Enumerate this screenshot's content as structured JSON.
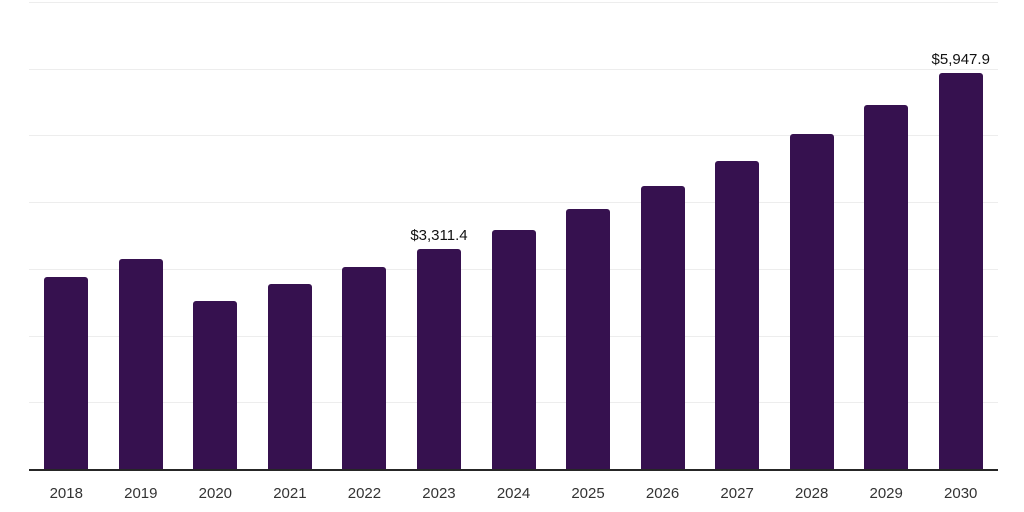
{
  "chart_data": {
    "type": "bar",
    "title": "",
    "xlabel": "",
    "ylabel": "",
    "ylim": [
      0,
      7000
    ],
    "gridline_step": 1000,
    "grid": true,
    "y_axis_tick_labels_visible": false,
    "legend": "none",
    "categories": [
      "2018",
      "2019",
      "2020",
      "2021",
      "2022",
      "2023",
      "2024",
      "2025",
      "2026",
      "2027",
      "2028",
      "2029",
      "2030"
    ],
    "values": [
      2890,
      3170,
      2530,
      2790,
      3050,
      3311.4,
      3600,
      3910,
      4255,
      4630,
      5030,
      5470,
      5947.9
    ],
    "points": [
      {
        "year": "2018",
        "value": 2890,
        "label": null
      },
      {
        "year": "2019",
        "value": 3170,
        "label": null
      },
      {
        "year": "2020",
        "value": 2530,
        "label": null
      },
      {
        "year": "2021",
        "value": 2790,
        "label": null
      },
      {
        "year": "2022",
        "value": 3050,
        "label": null
      },
      {
        "year": "2023",
        "value": 3311.4,
        "label": "$3,311.4"
      },
      {
        "year": "2024",
        "value": 3600,
        "label": null
      },
      {
        "year": "2025",
        "value": 3910,
        "label": null
      },
      {
        "year": "2026",
        "value": 4255,
        "label": null
      },
      {
        "year": "2027",
        "value": 4630,
        "label": null
      },
      {
        "year": "2028",
        "value": 5030,
        "label": null
      },
      {
        "year": "2029",
        "value": 5470,
        "label": null
      },
      {
        "year": "2030",
        "value": 5947.9,
        "label": "$5,947.9"
      }
    ]
  },
  "colors": {
    "bar": "#36114F",
    "gridline": "#EDEDED",
    "axis_line": "#262626",
    "x_label": "#333333",
    "data_label": "#111111",
    "background": "#FFFFFF"
  }
}
